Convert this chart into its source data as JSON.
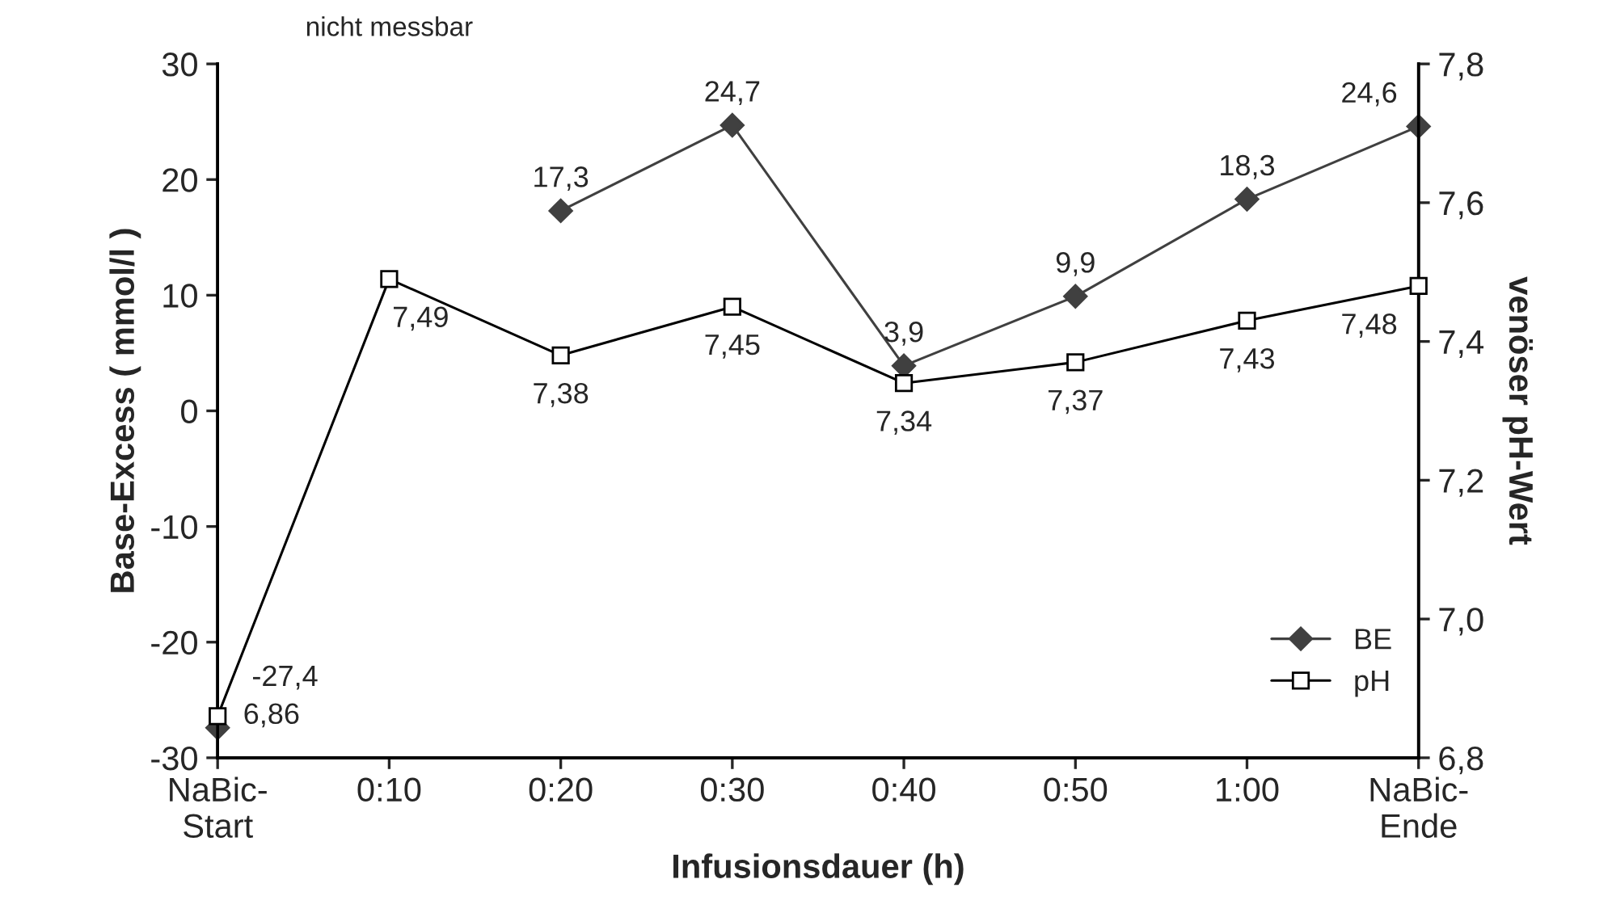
{
  "chart_data": {
    "type": "line",
    "xlabel": "Infusionsdauer (h)",
    "ylabel": "Base-Excess ( mmol/l )",
    "y2label": "venöser pH-Wert",
    "categories": [
      "NaBic-\nStart",
      "0:10",
      "0:20",
      "0:30",
      "0:40",
      "0:50",
      "1:00",
      "NaBic-\nEnde"
    ],
    "series": [
      {
        "name": "BE",
        "color": "#404040",
        "marker": "diamond",
        "values": [
          -27.4,
          null,
          17.3,
          24.7,
          3.9,
          9.9,
          18.3,
          24.6
        ],
        "value_labels": [
          "-27,4",
          null,
          "17,3",
          "24,7",
          "3,9",
          "9,9",
          "18,3",
          "24,6"
        ]
      },
      {
        "name": "pH",
        "color": "#000000",
        "marker": "square",
        "axis": "y2",
        "values": [
          6.86,
          7.49,
          7.38,
          7.45,
          7.34,
          7.37,
          7.43,
          7.48
        ],
        "value_labels": [
          "6,86",
          "7,49",
          "7,38",
          "7,45",
          "7,34",
          "7,37",
          "7,43",
          "7,48"
        ]
      }
    ],
    "ylim": [
      -30,
      30
    ],
    "yticks": [
      -30,
      -20,
      -10,
      0,
      10,
      20,
      30
    ],
    "y2lim": [
      6.8,
      7.8
    ],
    "y2ticks": [
      {
        "value": 6.8,
        "label": "6,8"
      },
      {
        "value": 7.0,
        "label": "7,0"
      },
      {
        "value": 7.2,
        "label": "7,2"
      },
      {
        "value": 7.4,
        "label": "7,4"
      },
      {
        "value": 7.6,
        "label": "7,6"
      },
      {
        "value": 7.8,
        "label": "7,8"
      }
    ],
    "annotations": [
      "nicht messbar"
    ],
    "legend": "bottom right",
    "grid": false
  }
}
